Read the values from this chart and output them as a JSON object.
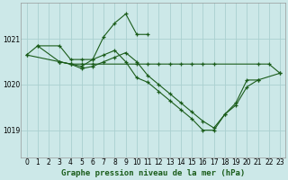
{
  "title": "Graphe pression niveau de la mer (hPa)",
  "bg_color": "#cce8e8",
  "grid_color": "#aad0d0",
  "line_color": "#1a5c1a",
  "xlim": [
    -0.5,
    23.5
  ],
  "ylim": [
    1018.4,
    1021.8
  ],
  "xticks": [
    0,
    1,
    2,
    3,
    4,
    5,
    6,
    7,
    8,
    9,
    10,
    11,
    12,
    13,
    14,
    15,
    16,
    17,
    18,
    19,
    20,
    21,
    22,
    23
  ],
  "yticks": [
    1019,
    1020,
    1021
  ],
  "series": [
    {
      "x": [
        0,
        1,
        3,
        4,
        5,
        6,
        7,
        8,
        9,
        10,
        11
      ],
      "y": [
        1020.65,
        1020.85,
        1020.85,
        1020.55,
        1020.55,
        1020.55,
        1021.05,
        1021.35,
        1021.55,
        1021.1,
        1021.1
      ]
    },
    {
      "x": [
        1,
        3,
        4,
        5,
        6,
        7,
        8,
        9,
        10,
        11,
        12,
        13,
        14,
        15,
        16,
        17,
        18,
        19,
        20,
        21,
        23
      ],
      "y": [
        1020.85,
        1020.5,
        1020.45,
        1020.4,
        1020.55,
        1020.65,
        1020.75,
        1020.5,
        1020.15,
        1020.05,
        1019.85,
        1019.65,
        1019.45,
        1019.25,
        1019.0,
        1019.0,
        1019.35,
        1019.6,
        1020.1,
        1020.1,
        1020.25
      ]
    },
    {
      "x": [
        0,
        3,
        4,
        5,
        6,
        10,
        11,
        12,
        13,
        14,
        15,
        16,
        17,
        21,
        22,
        23
      ],
      "y": [
        1020.65,
        1020.5,
        1020.45,
        1020.45,
        1020.45,
        1020.45,
        1020.45,
        1020.45,
        1020.45,
        1020.45,
        1020.45,
        1020.45,
        1020.45,
        1020.45,
        1020.45,
        1020.25
      ]
    },
    {
      "x": [
        3,
        4,
        5,
        6,
        7,
        8,
        9,
        10,
        11,
        12,
        13,
        14,
        15,
        16,
        17,
        18,
        19,
        20,
        21
      ],
      "y": [
        1020.5,
        1020.45,
        1020.35,
        1020.4,
        1020.5,
        1020.6,
        1020.7,
        1020.5,
        1020.2,
        1020.0,
        1019.8,
        1019.6,
        1019.4,
        1019.2,
        1019.05,
        1019.35,
        1019.55,
        1019.95,
        1020.1
      ]
    }
  ],
  "title_fontsize": 6.5,
  "tick_fontsize": 5.5
}
